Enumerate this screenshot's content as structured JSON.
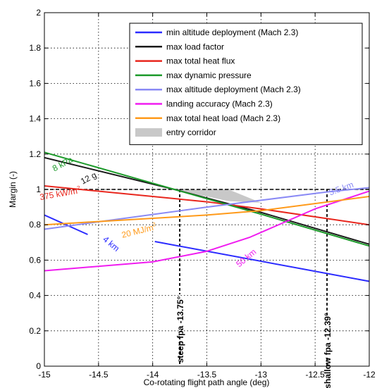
{
  "chart_data": {
    "type": "line",
    "xlabel": "Co-rotating flight path angle (deg)",
    "ylabel": "Margin (-)",
    "xlim": [
      -15,
      -12
    ],
    "ylim": [
      0,
      2
    ],
    "xticks": [
      -15,
      -14.5,
      -14,
      -13.5,
      -13,
      -12.5,
      -12
    ],
    "xtick_labels": [
      "-15",
      "-14.5",
      "-14",
      "-13.5",
      "-13",
      "-12.5",
      "-12"
    ],
    "yticks": [
      0,
      0.2,
      0.4,
      0.6,
      0.8,
      1,
      1.2,
      1.4,
      1.6,
      1.8,
      2
    ],
    "ytick_labels": [
      "0",
      "0.2",
      "0.4",
      "0.6",
      "0.8",
      "1",
      "1.2",
      "1.4",
      "1.6",
      "1.8",
      "2"
    ],
    "grid": true,
    "legend_position": "top-right",
    "series": [
      {
        "name": "min altitude deployment (Mach 2.3)",
        "color": "#2b2bff",
        "segments": [
          [
            [
              -15,
              0.855
            ],
            [
              -14.6,
              0.745
            ]
          ],
          [
            [
              -13.98,
              0.705
            ],
            [
              -12,
              0.48
            ]
          ]
        ]
      },
      {
        "name": "max load factor",
        "color": "#1a1a1a",
        "segments": [
          [
            [
              -15,
              1.18
            ],
            [
              -13.8,
              1.0
            ],
            [
              -13,
              0.87
            ],
            [
              -12,
              0.69
            ]
          ]
        ]
      },
      {
        "name": "max total heat flux",
        "color": "#e8261d",
        "segments": [
          [
            [
              -15,
              1.02
            ],
            [
              -13.5,
              0.93
            ],
            [
              -13,
              0.89
            ],
            [
              -12,
              0.8
            ]
          ]
        ]
      },
      {
        "name": "max dynamic pressure",
        "color": "#1c9a2a",
        "segments": [
          [
            [
              -15,
              1.21
            ],
            [
              -13.8,
              1.0
            ],
            [
              -13,
              0.86
            ],
            [
              -12,
              0.68
            ]
          ]
        ]
      },
      {
        "name": "max altitude deployment (Mach 2.3)",
        "color": "#8a8af5",
        "segments": [
          [
            [
              -15,
              0.775
            ],
            [
              -13.5,
              0.9
            ],
            [
              -12.4,
              0.985
            ],
            [
              -12,
              1.01
            ]
          ]
        ]
      },
      {
        "name": "landing accuracy (Mach 2.3)",
        "color": "#f01cf0",
        "segments": [
          [
            [
              -15,
              0.54
            ],
            [
              -14,
              0.59
            ],
            [
              -13.5,
              0.65
            ],
            [
              -13.1,
              0.73
            ],
            [
              -12.5,
              0.89
            ],
            [
              -12,
              0.99
            ]
          ]
        ]
      },
      {
        "name": "max total heat load (Mach 2.3)",
        "color": "#ff9a1a",
        "segments": [
          [
            [
              -15,
              0.8
            ],
            [
              -13.5,
              0.855
            ],
            [
              -13,
              0.88
            ],
            [
              -12,
              0.96
            ]
          ]
        ]
      }
    ],
    "corridor": {
      "name": "entry corridor",
      "color": "#c8c8c8",
      "polygon": [
        [
          -13.75,
          1.0
        ],
        [
          -13.6,
          1.0
        ],
        [
          -13.3,
          1.0
        ],
        [
          -13.0,
          0.925
        ],
        [
          -13.3,
          0.934
        ],
        [
          -13.5,
          0.96
        ],
        [
          -13.75,
          0.985
        ]
      ]
    },
    "reference_line": {
      "y": 1.0
    },
    "vertical_lines": [
      {
        "x": -13.75,
        "label": "steep fpa -13.75°"
      },
      {
        "x": -12.39,
        "label": "shallow fpa -12.39°"
      }
    ],
    "annotations": [
      {
        "text": "8 kPa",
        "color": "#1c9a2a",
        "x": -14.82,
        "y": 1.13
      },
      {
        "text": "12 g",
        "color": "#1a1a1a",
        "x": -14.58,
        "y": 1.05
      },
      {
        "text": "375 kW/m",
        "sup": "2",
        "color": "#e8261d",
        "x": -14.85,
        "y": 0.96
      },
      {
        "text": "20 MJ/m",
        "sup": "2",
        "color": "#ff9a1a",
        "x": -14.12,
        "y": 0.75
      },
      {
        "text": "4 km",
        "color": "#2b2bff",
        "x": -14.4,
        "y": 0.68
      },
      {
        "text": "50 km",
        "color": "#f01cf0",
        "x": -13.12,
        "y": 0.6
      },
      {
        "text": "3.5 km",
        "color": "#8a8af5",
        "x": -12.25,
        "y": 0.99
      }
    ]
  }
}
